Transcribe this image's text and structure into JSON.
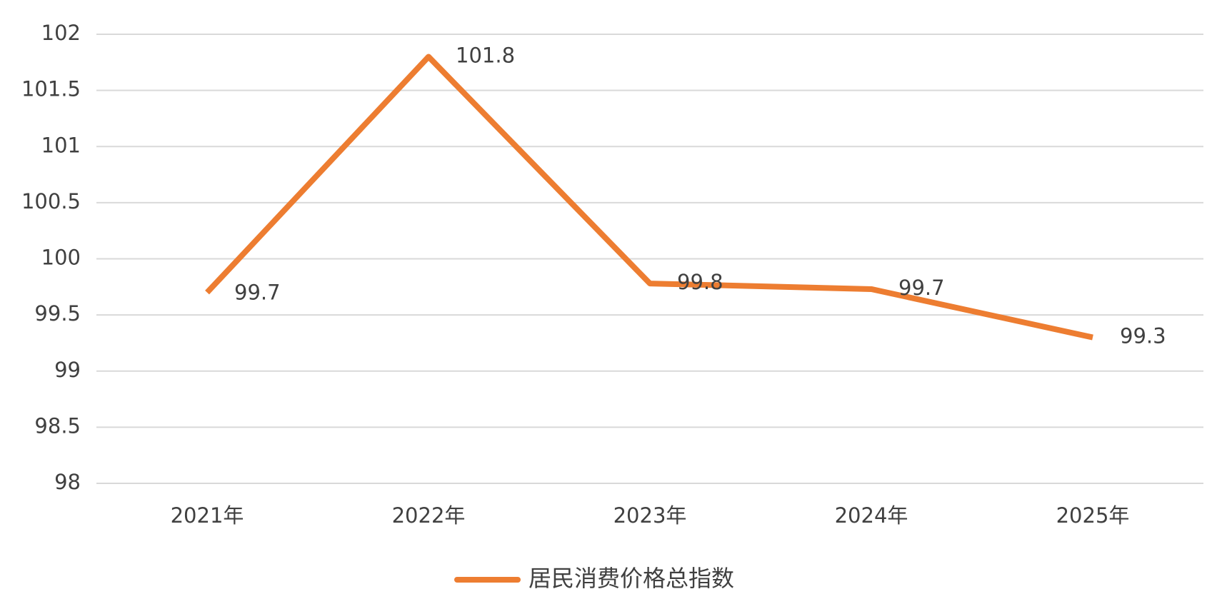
{
  "chart_data": {
    "type": "line",
    "categories": [
      "2021年",
      "2022年",
      "2023年",
      "2024年",
      "2025年"
    ],
    "series": [
      {
        "name": "居民消费价格总指数",
        "color": "#ed7d31",
        "values": [
          99.7,
          101.8,
          99.78,
          99.73,
          99.3
        ],
        "value_labels": [
          "99.7",
          "101.8",
          "99.8",
          "99.7",
          "99.3"
        ]
      }
    ],
    "ylim": [
      98,
      102
    ],
    "yticks": [
      98,
      98.5,
      99,
      99.5,
      100,
      100.5,
      101,
      101.5,
      102
    ],
    "grid": true,
    "legend": "bottom"
  }
}
